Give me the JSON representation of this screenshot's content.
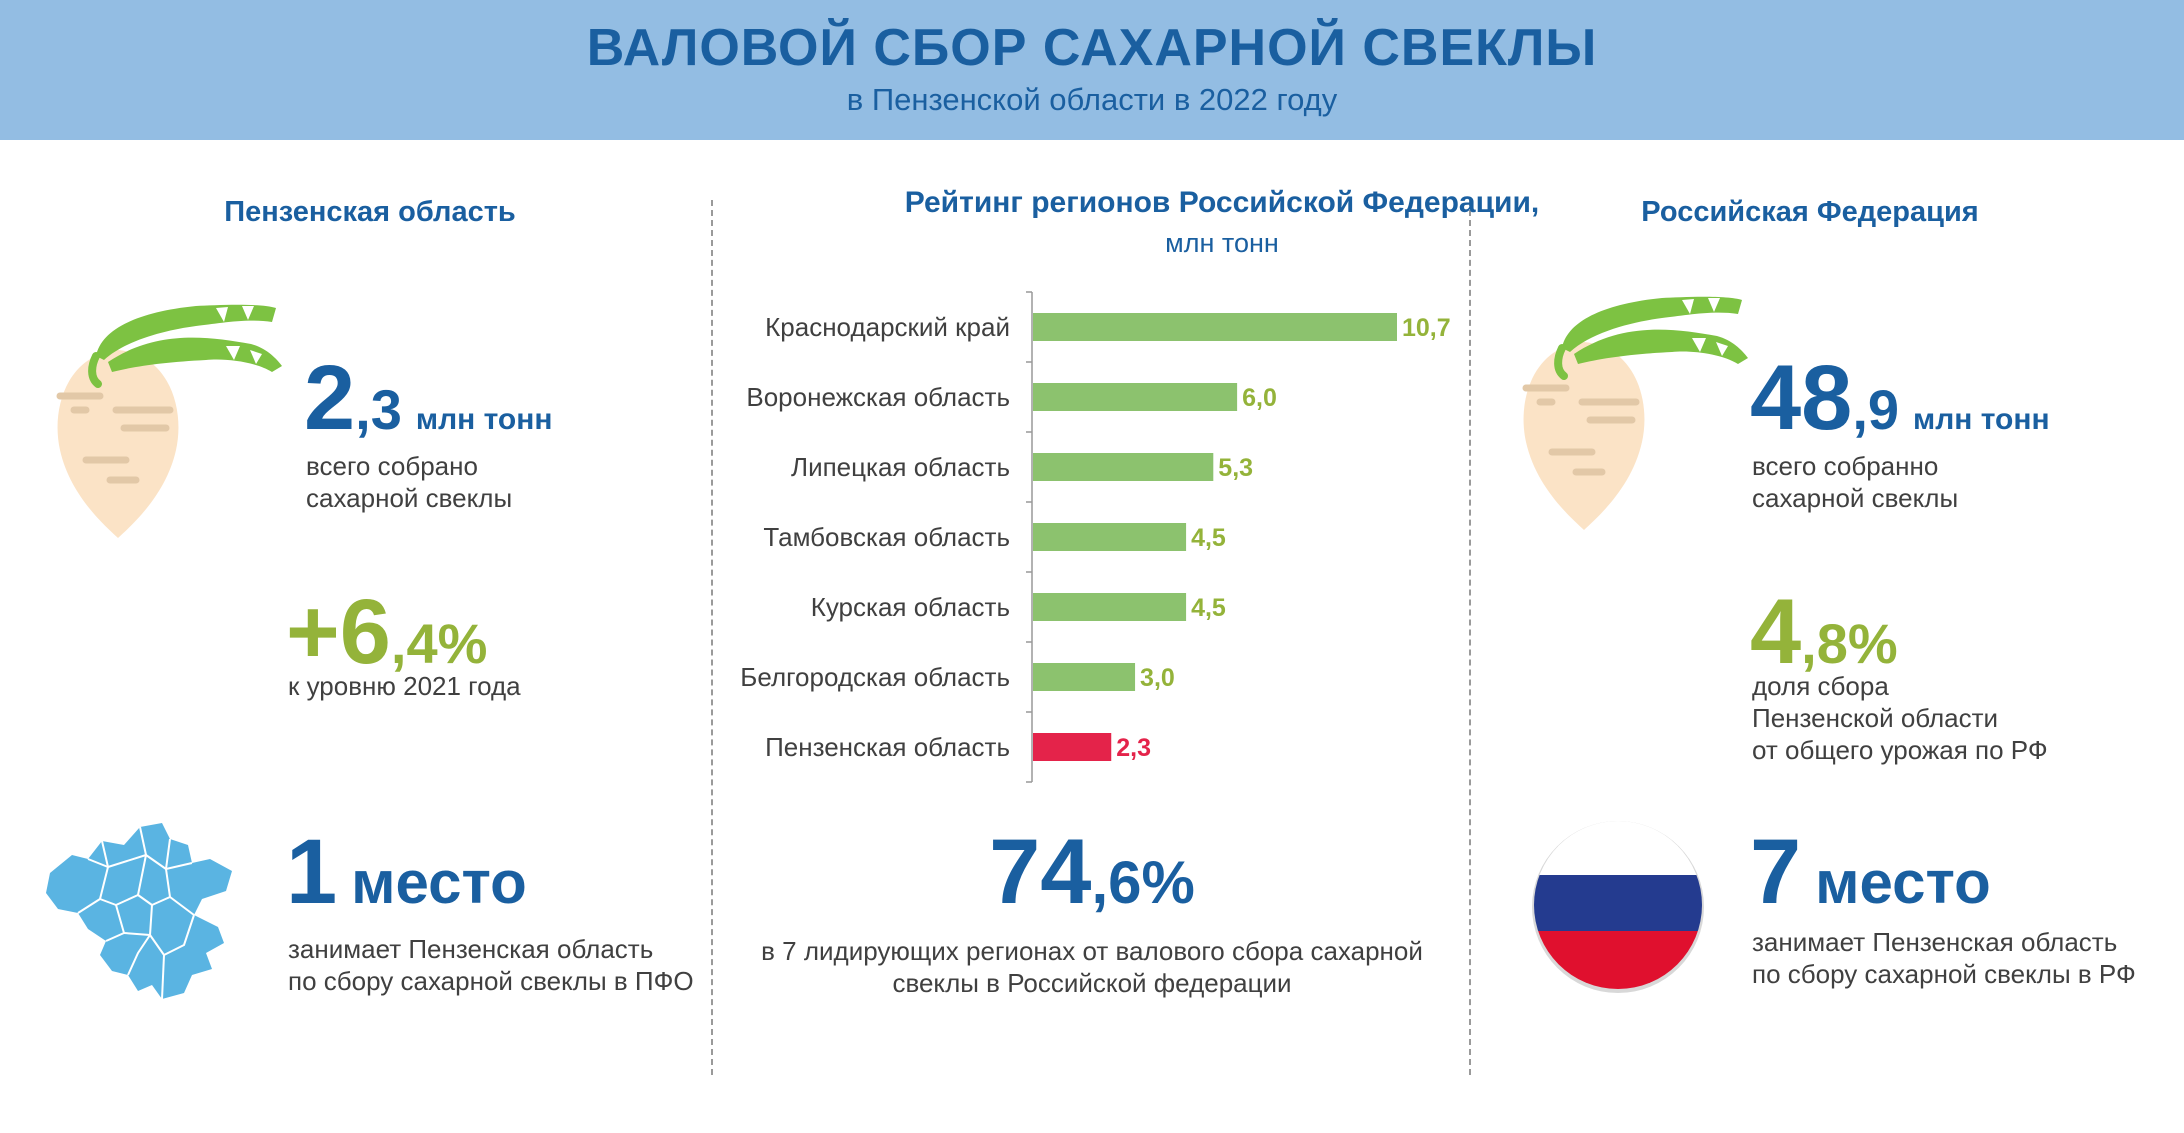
{
  "header": {
    "title": "ВАЛОВОЙ СБОР САХАРНОЙ СВЕКЛЫ",
    "subtitle": "в Пензенской области в 2022 году"
  },
  "left": {
    "title": "Пензенская область",
    "harvest": {
      "int": "2",
      "frac": ",3",
      "unit": "млн тонн",
      "desc1": "всего собрано",
      "desc2": "сахарной свеклы"
    },
    "growth": {
      "int": "+6",
      "frac": ",4%",
      "desc": "к уровню 2021 года"
    },
    "rank": {
      "int": "1",
      "unit": "место",
      "desc1": "занимает Пензенская область",
      "desc2": "по сбору сахарной свеклы в ПФО"
    }
  },
  "center": {
    "summary": {
      "int": "74",
      "frac": ",6%",
      "desc1": "в 7 лидирующих регионах от валового сбора сахарной",
      "desc2": "свеклы в Российской федерации"
    }
  },
  "right": {
    "title": "Российская Федерация",
    "harvest": {
      "int": "48",
      "frac": ",9",
      "unit": "млн тонн",
      "desc1": "всего собранно",
      "desc2": "сахарной свеклы"
    },
    "share": {
      "int": "4",
      "frac": ",8%",
      "desc1": "доля сбора",
      "desc2": "Пензенской области",
      "desc3": "от общего урожая по РФ"
    },
    "rank": {
      "int": "7",
      "unit": "место",
      "desc1": "занимает Пензенская область",
      "desc2": "по сбору сахарной свеклы в РФ"
    }
  },
  "colors": {
    "header_bg": "#93bde3",
    "primary": "#1a5fa0",
    "accent_green": "#94b33a",
    "bar": "#8cc26e",
    "bar_highlight": "#e4234a",
    "map": "#5ab4e2",
    "flag_white": "#ffffff",
    "flag_blue": "#243b8f",
    "flag_red": "#e0102e"
  },
  "icons": {
    "beet": "sugar-beet-icon",
    "map": "pfo-map-icon",
    "flag": "russia-flag-icon"
  },
  "chart_data": {
    "type": "bar",
    "orientation": "horizontal",
    "title": "Рейтинг регионов Российской Федерации,",
    "unit": "млн тонн",
    "categories": [
      "Краснодарский край",
      "Воронежская область",
      "Липецкая область",
      "Тамбовская область",
      "Курская область",
      "Белгородская область",
      "Пензенская область"
    ],
    "values": [
      10.7,
      6.0,
      5.3,
      4.5,
      4.5,
      3.0,
      2.3
    ],
    "labels": [
      "10,7",
      "6,0",
      "5,3",
      "4,5",
      "4,5",
      "3,0",
      "2,3"
    ],
    "highlight": "Пензенская область",
    "xlim": [
      0,
      10.7
    ],
    "grid": false,
    "legend": "none"
  }
}
